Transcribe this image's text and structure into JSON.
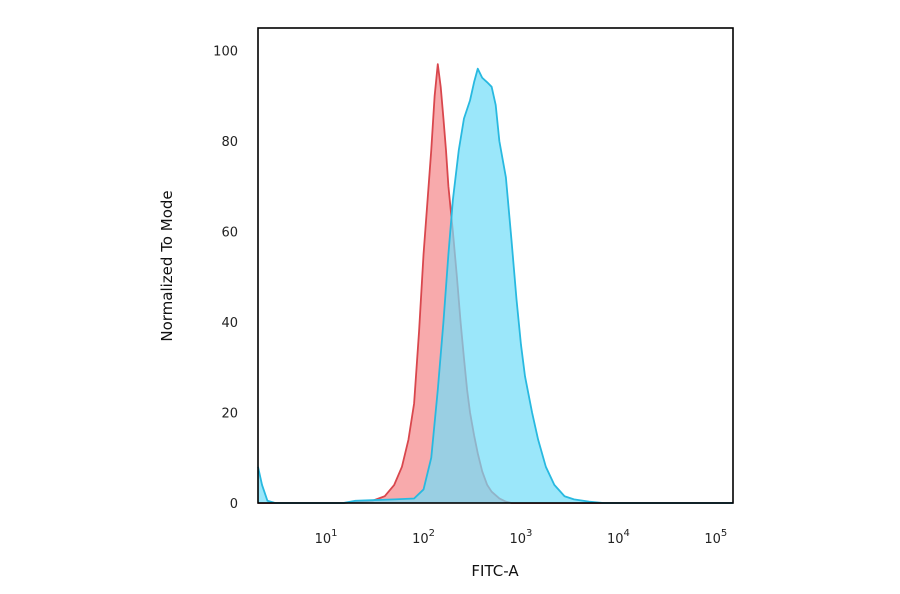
{
  "chart_data": {
    "type": "area",
    "xlabel": "FITC-A",
    "ylabel": "Normalized To Mode",
    "x_scale": "log",
    "xlim": [
      2,
      150000
    ],
    "ylim": [
      0,
      105
    ],
    "x_ticks": [
      {
        "value": 10,
        "base": "10",
        "exp": "1"
      },
      {
        "value": 100,
        "base": "10",
        "exp": "2"
      },
      {
        "value": 1000,
        "base": "10",
        "exp": "3"
      },
      {
        "value": 10000,
        "base": "10",
        "exp": "4"
      },
      {
        "value": 100000,
        "base": "10",
        "exp": "5"
      }
    ],
    "y_ticks": [
      0,
      20,
      40,
      60,
      80,
      100
    ],
    "grid": false,
    "series": [
      {
        "color": "#d9474d",
        "fill": "#f79b9d",
        "points": [
          [
            2,
            0
          ],
          [
            15,
            0
          ],
          [
            30,
            0.5
          ],
          [
            40,
            1.5
          ],
          [
            50,
            4
          ],
          [
            60,
            8
          ],
          [
            70,
            14
          ],
          [
            80,
            22
          ],
          [
            90,
            38
          ],
          [
            100,
            55
          ],
          [
            110,
            67
          ],
          [
            120,
            78
          ],
          [
            130,
            90
          ],
          [
            140,
            97
          ],
          [
            150,
            92
          ],
          [
            160,
            85
          ],
          [
            170,
            78
          ],
          [
            180,
            70
          ],
          [
            200,
            60
          ],
          [
            220,
            50
          ],
          [
            240,
            40
          ],
          [
            260,
            32
          ],
          [
            280,
            25
          ],
          [
            300,
            20
          ],
          [
            330,
            15
          ],
          [
            360,
            11
          ],
          [
            400,
            7
          ],
          [
            450,
            4
          ],
          [
            500,
            2.5
          ],
          [
            600,
            1
          ],
          [
            700,
            0.3
          ],
          [
            800,
            0
          ],
          [
            150000,
            0
          ]
        ]
      },
      {
        "color": "#28b9e0",
        "fill": "#75def8",
        "points": [
          [
            2,
            8
          ],
          [
            2.2,
            4
          ],
          [
            2.5,
            0.5
          ],
          [
            3,
            0
          ],
          [
            15,
            0
          ],
          [
            20,
            0.5
          ],
          [
            50,
            0.8
          ],
          [
            80,
            1
          ],
          [
            100,
            3
          ],
          [
            120,
            10
          ],
          [
            140,
            25
          ],
          [
            160,
            40
          ],
          [
            180,
            55
          ],
          [
            200,
            67
          ],
          [
            230,
            78
          ],
          [
            260,
            85
          ],
          [
            300,
            89
          ],
          [
            330,
            93
          ],
          [
            360,
            96
          ],
          [
            400,
            94
          ],
          [
            450,
            93
          ],
          [
            500,
            92
          ],
          [
            550,
            88
          ],
          [
            600,
            80
          ],
          [
            700,
            72
          ],
          [
            800,
            58
          ],
          [
            900,
            45
          ],
          [
            1000,
            35
          ],
          [
            1100,
            28
          ],
          [
            1300,
            20
          ],
          [
            1500,
            14
          ],
          [
            1800,
            8
          ],
          [
            2200,
            4
          ],
          [
            2800,
            1.5
          ],
          [
            3500,
            0.8
          ],
          [
            5000,
            0.3
          ],
          [
            7000,
            0
          ],
          [
            150000,
            0
          ]
        ]
      }
    ]
  }
}
